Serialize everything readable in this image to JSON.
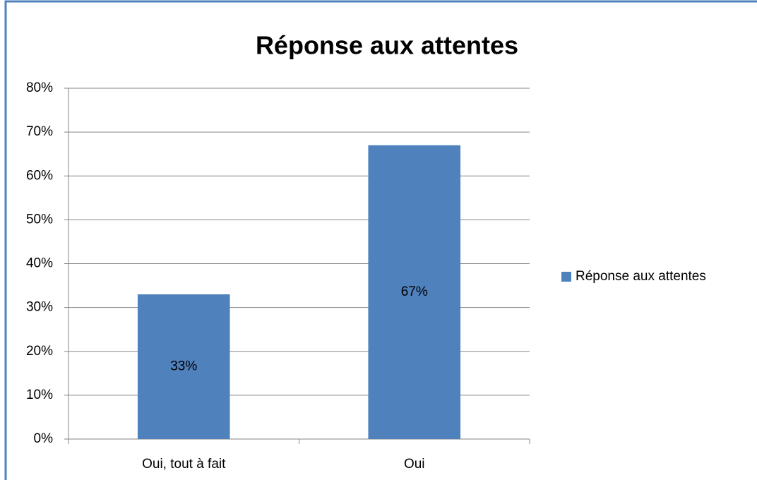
{
  "chart_data": {
    "type": "bar",
    "title": "Réponse aux attentes",
    "categories": [
      "Oui, tout à fait",
      "Oui"
    ],
    "series": [
      {
        "name": "Réponse aux attentes",
        "color": "#4f81bd",
        "values": [
          33,
          67
        ],
        "value_labels": [
          "33%",
          "67%"
        ]
      }
    ],
    "ylim": [
      0,
      80
    ],
    "yticks": [
      {
        "value": 0,
        "label": "0%"
      },
      {
        "value": 10,
        "label": "10%"
      },
      {
        "value": 20,
        "label": "20%"
      },
      {
        "value": 30,
        "label": "30%"
      },
      {
        "value": 40,
        "label": "40%"
      },
      {
        "value": 50,
        "label": "50%"
      },
      {
        "value": 60,
        "label": "60%"
      },
      {
        "value": 70,
        "label": "70%"
      },
      {
        "value": 80,
        "label": "80%"
      }
    ],
    "grid": true,
    "legend": "right"
  }
}
